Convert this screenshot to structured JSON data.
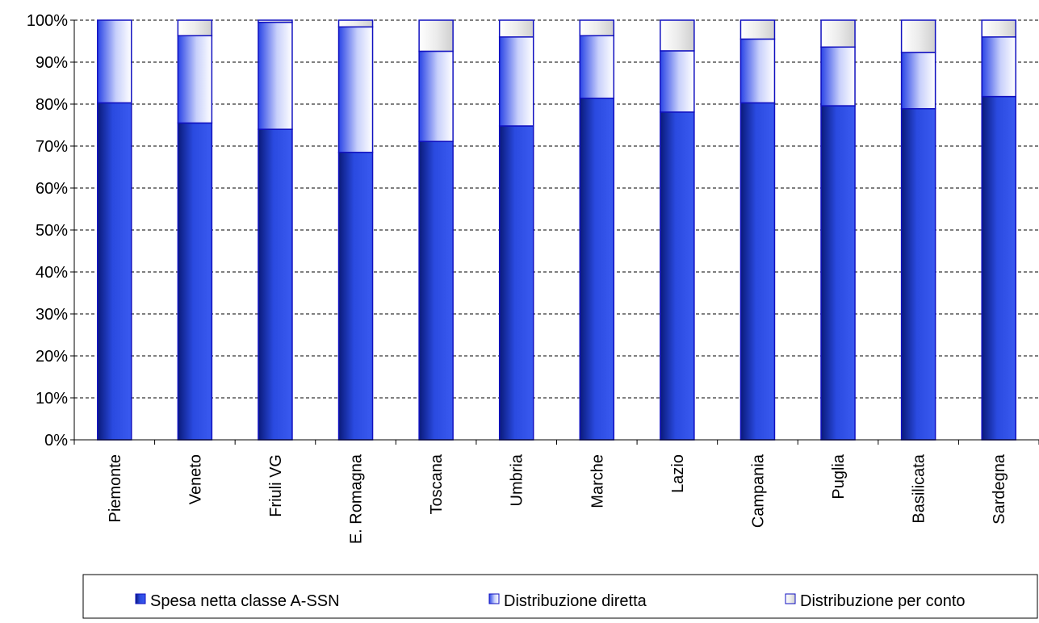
{
  "chart_data": {
    "type": "bar",
    "stacked": true,
    "normalized": "percent",
    "categories": [
      "Piemonte",
      "Veneto",
      "Friuli VG",
      "E. Romagna",
      "Toscana",
      "Umbria",
      "Marche",
      "Lazio",
      "Campania",
      "Puglia",
      "Basilicata",
      "Sardegna"
    ],
    "series": [
      {
        "name": "Spesa netta classe A-SSN",
        "values": [
          80.3,
          75.5,
          74.0,
          68.5,
          71.1,
          74.8,
          81.4,
          78.1,
          80.3,
          79.6,
          78.9,
          81.8
        ],
        "color": "#2040d0"
      },
      {
        "name": "Distribuzione diretta",
        "values": [
          19.7,
          20.8,
          25.5,
          29.9,
          21.5,
          21.2,
          14.9,
          14.6,
          15.2,
          14.0,
          13.4,
          14.2
        ],
        "color": "#4a66ee"
      },
      {
        "name": "Distribuzione per conto",
        "values": [
          0.0,
          3.7,
          0.5,
          1.6,
          7.4,
          4.0,
          3.7,
          7.3,
          4.5,
          6.4,
          7.7,
          4.0
        ],
        "color": "#d8d8d8"
      }
    ],
    "ylim": [
      0,
      100
    ],
    "y_ticks": [
      "0%",
      "10%",
      "20%",
      "30%",
      "40%",
      "50%",
      "60%",
      "70%",
      "80%",
      "90%",
      "100%"
    ],
    "grid": "horizontal dashed",
    "legend_position": "bottom",
    "xlabel": "",
    "ylabel": ""
  }
}
